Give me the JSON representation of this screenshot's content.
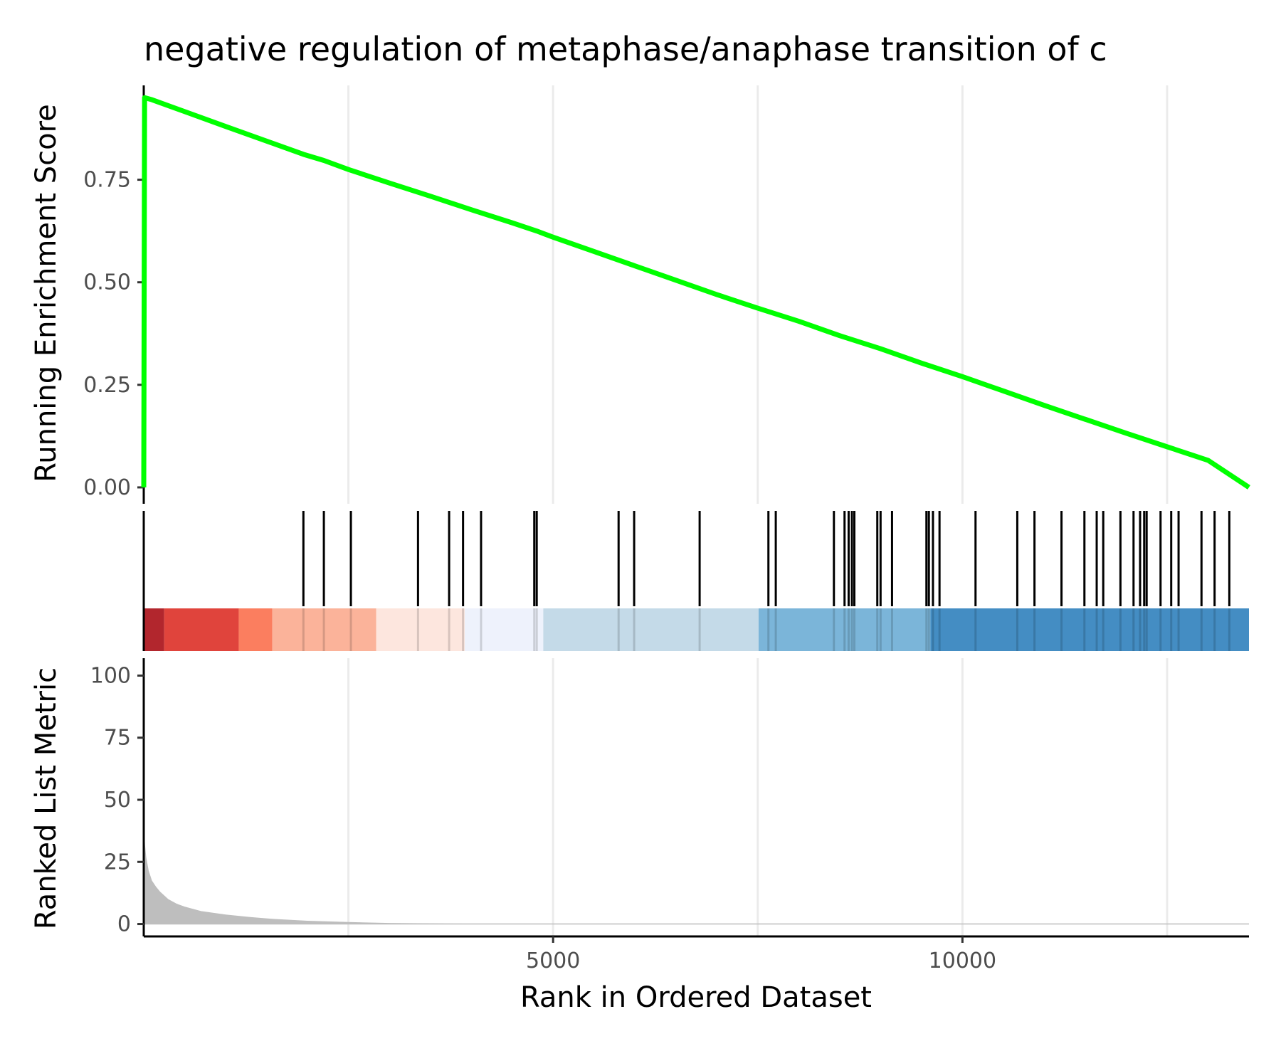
{
  "chart_data": {
    "type": "line",
    "title": "negative regulation of metaphase/anaphase transition of c",
    "xlabel": "Rank in Ordered Dataset",
    "xlim": [
      0,
      13500
    ],
    "x_ticks": [
      "5000",
      "10000"
    ],
    "x_tick_values": [
      5000,
      10000
    ],
    "x_grid": [
      2500,
      5000,
      7500,
      10000,
      12500
    ],
    "panels": {
      "running_score": {
        "ylabel": "Running Enrichment Score",
        "ylim": [
          -0.04,
          0.98
        ],
        "y_ticks": [
          "0.00",
          "0.25",
          "0.50",
          "0.75"
        ],
        "y_tick_values": [
          0.0,
          0.25,
          0.5,
          0.75
        ],
        "series": [
          {
            "color": "#00ff00",
            "x": [
              0,
              10,
              100,
              1000,
              1950,
              2200,
              2500,
              3000,
              3500,
              4000,
              4500,
              4800,
              5000,
              5500,
              6000,
              6500,
              7000,
              7500,
              8000,
              8500,
              9000,
              9500,
              10000,
              10500,
              11000,
              11500,
              12000,
              12500,
              13000,
              13500
            ],
            "y": [
              0.0,
              0.95,
              0.945,
              0.88,
              0.812,
              0.797,
              0.775,
              0.742,
              0.71,
              0.677,
              0.645,
              0.625,
              0.61,
              0.575,
              0.54,
              0.505,
              0.47,
              0.437,
              0.405,
              0.37,
              0.338,
              0.303,
              0.27,
              0.235,
              0.2,
              0.166,
              0.132,
              0.099,
              0.066,
              0.0
            ]
          }
        ]
      },
      "hits": {
        "color": "#000000",
        "positions": [
          1950,
          2200,
          2530,
          3350,
          3730,
          3900,
          4120,
          4770,
          4800,
          5800,
          5990,
          6790,
          7630,
          7720,
          8430,
          8560,
          8610,
          8650,
          8680,
          8960,
          9000,
          9140,
          9560,
          9590,
          9640,
          9720,
          10160,
          10670,
          10880,
          11210,
          11490,
          11640,
          11720,
          11930,
          12090,
          12170,
          12220,
          12250,
          12420,
          12550,
          12640,
          12920,
          13080,
          13260
        ]
      },
      "heat_strip": {
        "segments": [
          {
            "from": 0,
            "to": 250,
            "color": "#b2262d"
          },
          {
            "from": 250,
            "to": 1160,
            "color": "#e0443c"
          },
          {
            "from": 1160,
            "to": 1570,
            "color": "#fb7e5f"
          },
          {
            "from": 1570,
            "to": 2840,
            "color": "#fbb39a"
          },
          {
            "from": 2840,
            "to": 3920,
            "color": "#fde6de"
          },
          {
            "from": 3920,
            "to": 4880,
            "color": "#eef2fc"
          },
          {
            "from": 4880,
            "to": 7510,
            "color": "#c4dae8"
          },
          {
            "from": 7510,
            "to": 9610,
            "color": "#7bb5d9"
          },
          {
            "from": 9610,
            "to": 13500,
            "color": "#448dc3"
          }
        ]
      },
      "ranked_metric": {
        "ylabel": "Ranked List Metric",
        "ylim": [
          -5,
          107
        ],
        "y_ticks": [
          "0",
          "25",
          "50",
          "75",
          "100"
        ],
        "y_tick_values": [
          0,
          25,
          50,
          75,
          100
        ],
        "fill_color": "#bebebe",
        "x": [
          0,
          5,
          15,
          30,
          60,
          100,
          150,
          200,
          300,
          400,
          500,
          700,
          1000,
          1300,
          1600,
          2000,
          2500,
          3000,
          4000,
          6000,
          13500
        ],
        "y": [
          45,
          38,
          32,
          27,
          21.5,
          17.5,
          15,
          13,
          10,
          8.2,
          7,
          5.2,
          3.8,
          2.8,
          2.0,
          1.3,
          0.8,
          0.4,
          0.15,
          0.05,
          0
        ]
      }
    }
  }
}
